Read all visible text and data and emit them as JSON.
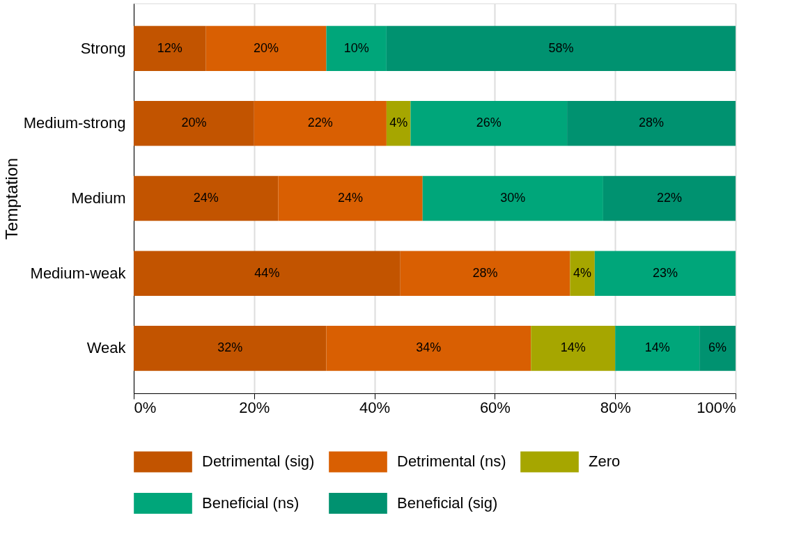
{
  "chart_data": {
    "type": "bar",
    "orientation": "horizontal",
    "stacked": true,
    "ylabel": "Temptation",
    "categories": [
      "Strong",
      "Medium-strong",
      "Medium",
      "Medium-weak",
      "Weak"
    ],
    "series": [
      {
        "name": "Detrimental (sig)",
        "color": "#c25400",
        "values": [
          12,
          20,
          24,
          44.3,
          32
        ],
        "value_labels": [
          "12%",
          "20%",
          "24%",
          "44%",
          "32%"
        ]
      },
      {
        "name": "Detrimental (ns)",
        "color": "#d95f02",
        "values": [
          20,
          22,
          24,
          28.2,
          34
        ],
        "value_labels": [
          "20%",
          "22%",
          "24%",
          "28%",
          "34%"
        ]
      },
      {
        "name": "Zero",
        "color": "#a6a600",
        "values": [
          null,
          4,
          null,
          4.1,
          14
        ],
        "value_labels": [
          null,
          "4%",
          null,
          "4%",
          "14%"
        ]
      },
      {
        "name": "Beneficial (ns)",
        "color": "#00a67a",
        "values": [
          10,
          26,
          30,
          23.4,
          14
        ],
        "value_labels": [
          "10%",
          "26%",
          "30%",
          "23%",
          "14%"
        ]
      },
      {
        "name": "Beneficial (sig)",
        "color": "#009270",
        "values": [
          58,
          28,
          22,
          null,
          6
        ],
        "value_labels": [
          "58%",
          "28%",
          "22%",
          null,
          "6%"
        ]
      }
    ],
    "xlim": [
      0,
      100
    ],
    "xticks": [
      {
        "value": 0,
        "label": "0%"
      },
      {
        "value": 20,
        "label": "20%"
      },
      {
        "value": 40,
        "label": "40%"
      },
      {
        "value": 60,
        "label": "60%"
      },
      {
        "value": 80,
        "label": "80%"
      },
      {
        "value": 100,
        "label": "100%"
      }
    ],
    "grid": "x",
    "legend": "bottom"
  }
}
